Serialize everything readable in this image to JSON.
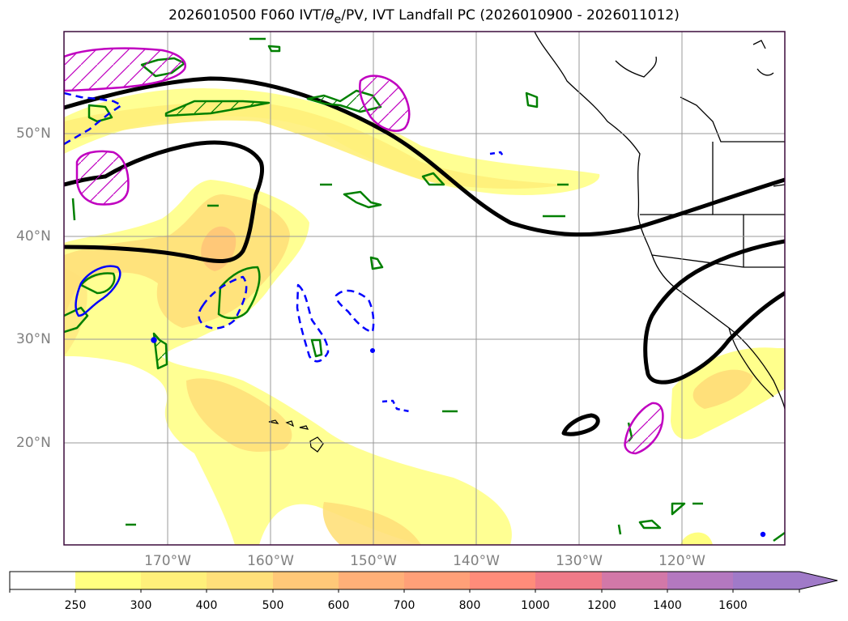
{
  "title": "2026010500 F060 IVT/θe/PV, IVT Landfall PC (2026010900 - 2026011012)",
  "title_parts": {
    "prefix": "2026010500 F060 IVT/",
    "theta": "θ",
    "sub": "e",
    "suffix": "/PV, IVT Landfall PC (2026010900 - 2026011012)"
  },
  "lat_labels": [
    "50°N",
    "40°N",
    "30°N",
    "20°N"
  ],
  "lon_labels": [
    "170°W",
    "160°W",
    "150°W",
    "140°W",
    "130°W",
    "120°W"
  ],
  "colorbar": {
    "ticks": [
      "250",
      "300",
      "400",
      "500",
      "600",
      "700",
      "800",
      "1000",
      "1200",
      "1400",
      "1600"
    ],
    "colors": [
      "#ffffff",
      "#ffff80",
      "#fff07a",
      "#ffe07a",
      "#ffc878",
      "#ffb078",
      "#ffa078",
      "#ff8c7a",
      "#f07a88",
      "#d278a8",
      "#b478c0",
      "#a07ac8"
    ],
    "extend": "max"
  },
  "colors": {
    "ivt_fill": "#ffff80",
    "theta_e_contour": "#000000",
    "pv_positive": "#008000",
    "pv_negative": "#0000ff",
    "landfall": "#c000c0"
  }
}
